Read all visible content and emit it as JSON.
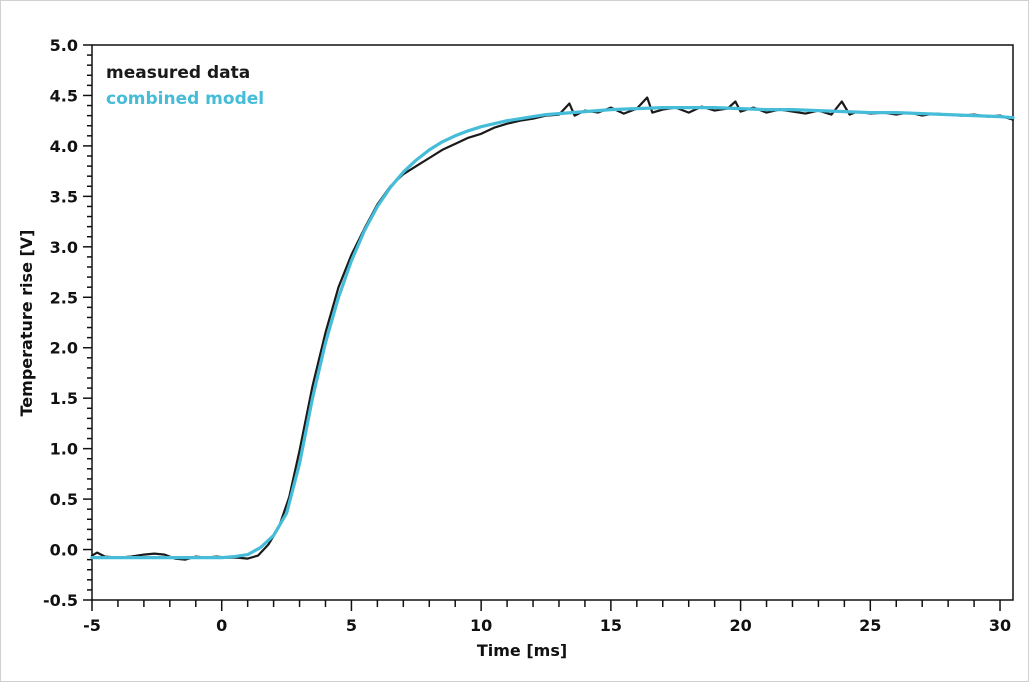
{
  "chart_data": {
    "type": "line",
    "xlabel": "Time [ms]",
    "ylabel": "Temperature rise [V]",
    "xlim": [
      -5,
      30.5
    ],
    "ylim": [
      -0.5,
      5.0
    ],
    "x_ticks": [
      "-5",
      "0",
      "5",
      "10",
      "15",
      "20",
      "25",
      "30"
    ],
    "x_tick_values": [
      -5,
      0,
      5,
      10,
      15,
      20,
      25,
      30
    ],
    "y_ticks": [
      "-0.5",
      "0.0",
      "0.5",
      "1.0",
      "1.5",
      "2.0",
      "2.5",
      "3.0",
      "3.5",
      "4.0",
      "4.5",
      "5.0"
    ],
    "y_tick_values": [
      -0.5,
      0.0,
      0.5,
      1.0,
      1.5,
      2.0,
      2.5,
      3.0,
      3.5,
      4.0,
      4.5,
      5.0
    ],
    "grid": false,
    "legend_position": "top-left",
    "series": [
      {
        "name": "measured data",
        "color": "#1a1a1a",
        "x": [
          -5,
          -4.8,
          -4.5,
          -4,
          -3.5,
          -3,
          -2.6,
          -2.2,
          -1.8,
          -1.4,
          -1,
          -0.6,
          -0.2,
          0.2,
          0.6,
          1.0,
          1.4,
          1.8,
          2.2,
          2.6,
          3.0,
          3.5,
          4.0,
          4.5,
          5.0,
          5.5,
          6.0,
          6.5,
          7.0,
          7.5,
          8.0,
          8.5,
          9.0,
          9.5,
          10.0,
          10.5,
          11.0,
          11.5,
          12.0,
          12.5,
          13.0,
          13.4,
          13.6,
          14.0,
          14.5,
          15.0,
          15.5,
          16.0,
          16.4,
          16.6,
          17.0,
          17.5,
          18.0,
          18.5,
          19.0,
          19.5,
          19.8,
          20.0,
          20.5,
          21.0,
          21.5,
          22.0,
          22.5,
          23.0,
          23.5,
          23.9,
          24.2,
          24.5,
          25.0,
          25.5,
          26.0,
          26.5,
          27.0,
          27.5,
          28.0,
          28.5,
          29.0,
          29.5,
          30.0,
          30.5
        ],
        "y": [
          -0.06,
          -0.03,
          -0.07,
          -0.08,
          -0.07,
          -0.05,
          -0.04,
          -0.05,
          -0.09,
          -0.1,
          -0.07,
          -0.08,
          -0.07,
          -0.08,
          -0.08,
          -0.09,
          -0.06,
          0.05,
          0.22,
          0.52,
          0.98,
          1.62,
          2.15,
          2.6,
          2.92,
          3.18,
          3.42,
          3.6,
          3.72,
          3.8,
          3.88,
          3.96,
          4.02,
          4.08,
          4.12,
          4.18,
          4.22,
          4.25,
          4.27,
          4.3,
          4.31,
          4.42,
          4.3,
          4.35,
          4.33,
          4.38,
          4.32,
          4.37,
          4.48,
          4.33,
          4.36,
          4.38,
          4.33,
          4.39,
          4.35,
          4.37,
          4.44,
          4.34,
          4.38,
          4.33,
          4.36,
          4.34,
          4.32,
          4.35,
          4.31,
          4.44,
          4.31,
          4.34,
          4.32,
          4.33,
          4.31,
          4.33,
          4.3,
          4.32,
          4.31,
          4.3,
          4.31,
          4.29,
          4.3,
          4.26
        ]
      },
      {
        "name": "combined model",
        "color": "#45bcd8",
        "x": [
          -5,
          -3,
          -1,
          0,
          0.5,
          1.0,
          1.5,
          2.0,
          2.5,
          3.0,
          3.5,
          4.0,
          4.5,
          5.0,
          5.5,
          6.0,
          6.5,
          7.0,
          7.5,
          8.0,
          8.5,
          9.0,
          9.5,
          10.0,
          10.5,
          11.0,
          11.5,
          12.0,
          12.5,
          13.0,
          14.0,
          15.0,
          16.0,
          17.0,
          18.0,
          19.0,
          20.0,
          21.0,
          22.0,
          23.0,
          24.0,
          25.0,
          26.0,
          27.0,
          28.0,
          29.0,
          30.0,
          30.5
        ],
        "y": [
          -0.08,
          -0.08,
          -0.08,
          -0.08,
          -0.07,
          -0.05,
          0.02,
          0.14,
          0.36,
          0.85,
          1.5,
          2.05,
          2.5,
          2.86,
          3.16,
          3.4,
          3.59,
          3.74,
          3.86,
          3.96,
          4.04,
          4.1,
          4.15,
          4.19,
          4.22,
          4.25,
          4.27,
          4.29,
          4.31,
          4.32,
          4.34,
          4.36,
          4.37,
          4.38,
          4.38,
          4.38,
          4.37,
          4.36,
          4.36,
          4.35,
          4.34,
          4.33,
          4.33,
          4.32,
          4.31,
          4.3,
          4.29,
          4.28
        ]
      }
    ]
  }
}
